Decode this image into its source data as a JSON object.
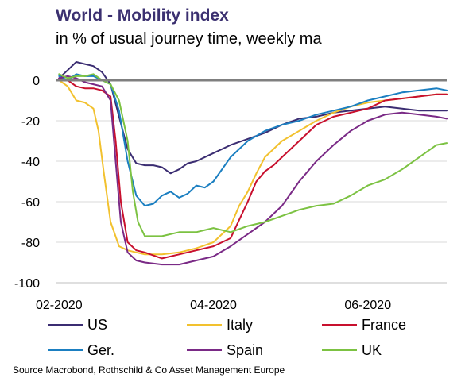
{
  "chart_data": {
    "type": "line",
    "title": "World - Mobility index",
    "subtitle": "in % of usual journey time, weekly ma",
    "xlabel": "",
    "ylabel": "",
    "ylim": [
      -100,
      0
    ],
    "yticks": [
      0,
      -20,
      -40,
      -60,
      -80,
      -100
    ],
    "x_tick_labels": [
      "02-2020",
      "04-2020",
      "06-2020"
    ],
    "x_tick_values": [
      0,
      9,
      18
    ],
    "xlim": [
      -0.2,
      22.6
    ],
    "grid": true,
    "legend_position": "bottom",
    "source": "Source Macrobond, Rothschild & Co Asset Management Europe",
    "series": [
      {
        "name": "US",
        "color": "#3b2d72",
        "x": [
          0,
          0.5,
          1,
          1.5,
          2,
          2.5,
          3,
          3.5,
          4,
          4.5,
          5,
          5.5,
          6,
          6.5,
          7,
          7.5,
          8,
          9,
          10,
          11,
          12,
          13,
          14,
          15,
          16,
          17,
          18,
          19,
          20,
          21,
          22,
          22.6
        ],
        "y": [
          1,
          5,
          9,
          8,
          7,
          4,
          -2,
          -18,
          -34,
          -41,
          -42,
          -42,
          -43,
          -46,
          -44,
          -41,
          -40,
          -36,
          -32,
          -29,
          -26,
          -22,
          -19,
          -18,
          -16,
          -15,
          -14,
          -13,
          -14,
          -15,
          -15,
          -15
        ]
      },
      {
        "name": "Italy",
        "color": "#f2c12e",
        "x": [
          0,
          0.5,
          1,
          1.5,
          2,
          2.3,
          2.6,
          3,
          3.5,
          4,
          4.5,
          5,
          6,
          7,
          8,
          9,
          10,
          10.5,
          11,
          11.5,
          12,
          13,
          14,
          15,
          16,
          17,
          18,
          19,
          20,
          21,
          22,
          22.6
        ],
        "y": [
          0,
          -3,
          -10,
          -11,
          -14,
          -25,
          -45,
          -70,
          -82,
          -84,
          -85,
          -86,
          -86,
          -85,
          -83,
          -80,
          -72,
          -62,
          -55,
          -46,
          -38,
          -30,
          -25,
          -20,
          -16,
          -13,
          -11,
          -10,
          -9,
          -8,
          -7,
          -7
        ]
      },
      {
        "name": "France",
        "color": "#c8102e",
        "x": [
          0,
          0.5,
          1,
          1.5,
          2,
          2.5,
          3,
          3.3,
          3.6,
          4,
          4.5,
          5,
          6,
          7,
          8,
          9,
          10,
          11,
          11.5,
          12,
          12.5,
          13,
          14,
          15,
          16,
          17,
          18,
          19,
          20,
          21,
          22,
          22.6
        ],
        "y": [
          1,
          0,
          -3,
          -4,
          -4,
          -5,
          -8,
          -30,
          -60,
          -80,
          -84,
          -85,
          -88,
          -86,
          -84,
          -82,
          -78,
          -60,
          -50,
          -45,
          -42,
          -38,
          -30,
          -22,
          -18,
          -16,
          -14,
          -10,
          -9,
          -8,
          -7,
          -7
        ]
      },
      {
        "name": "Ger.",
        "color": "#1b7fc1",
        "x": [
          0,
          0.5,
          1,
          1.5,
          2,
          2.5,
          3,
          3.5,
          4,
          4.5,
          5,
          5.5,
          6,
          6.5,
          7,
          7.5,
          8,
          8.5,
          9,
          10,
          11,
          12,
          13,
          14,
          15,
          16,
          17,
          18,
          19,
          20,
          21,
          22,
          22.6
        ],
        "y": [
          2,
          0,
          3,
          2,
          2,
          0,
          -2,
          -15,
          -40,
          -57,
          -62,
          -61,
          -57,
          -55,
          -58,
          -56,
          -52,
          -53,
          -50,
          -38,
          -30,
          -25,
          -22,
          -20,
          -17,
          -15,
          -13,
          -10,
          -8,
          -6,
          -5,
          -4,
          -5
        ]
      },
      {
        "name": "Spain",
        "color": "#7a2a86",
        "x": [
          0,
          0.5,
          1,
          1.5,
          2,
          2.5,
          3,
          3.3,
          3.6,
          4,
          4.5,
          5,
          6,
          7,
          8,
          9,
          10,
          11,
          12,
          13,
          14,
          15,
          16,
          17,
          18,
          19,
          20,
          21,
          22,
          22.6
        ],
        "y": [
          1,
          2,
          1,
          -1,
          -2,
          -3,
          -10,
          -40,
          -70,
          -85,
          -89,
          -90,
          -91,
          -91,
          -89,
          -87,
          -82,
          -76,
          -70,
          -62,
          -50,
          -40,
          -32,
          -25,
          -20,
          -17,
          -16,
          -17,
          -18,
          -19
        ]
      },
      {
        "name": "UK",
        "color": "#7cc242",
        "x": [
          0,
          0.5,
          1,
          1.5,
          2,
          2.5,
          3,
          3.5,
          4,
          4.3,
          4.6,
          5,
          6,
          7,
          8,
          9,
          10,
          11,
          12,
          13,
          14,
          15,
          16,
          17,
          18,
          19,
          20,
          21,
          22,
          22.6
        ],
        "y": [
          3,
          1,
          2,
          2,
          3,
          0,
          -2,
          -10,
          -30,
          -55,
          -70,
          -77,
          -77,
          -75,
          -75,
          -73,
          -75,
          -72,
          -70,
          -67,
          -64,
          -62,
          -61,
          -57,
          -52,
          -49,
          -44,
          -38,
          -32,
          -31
        ]
      }
    ]
  }
}
